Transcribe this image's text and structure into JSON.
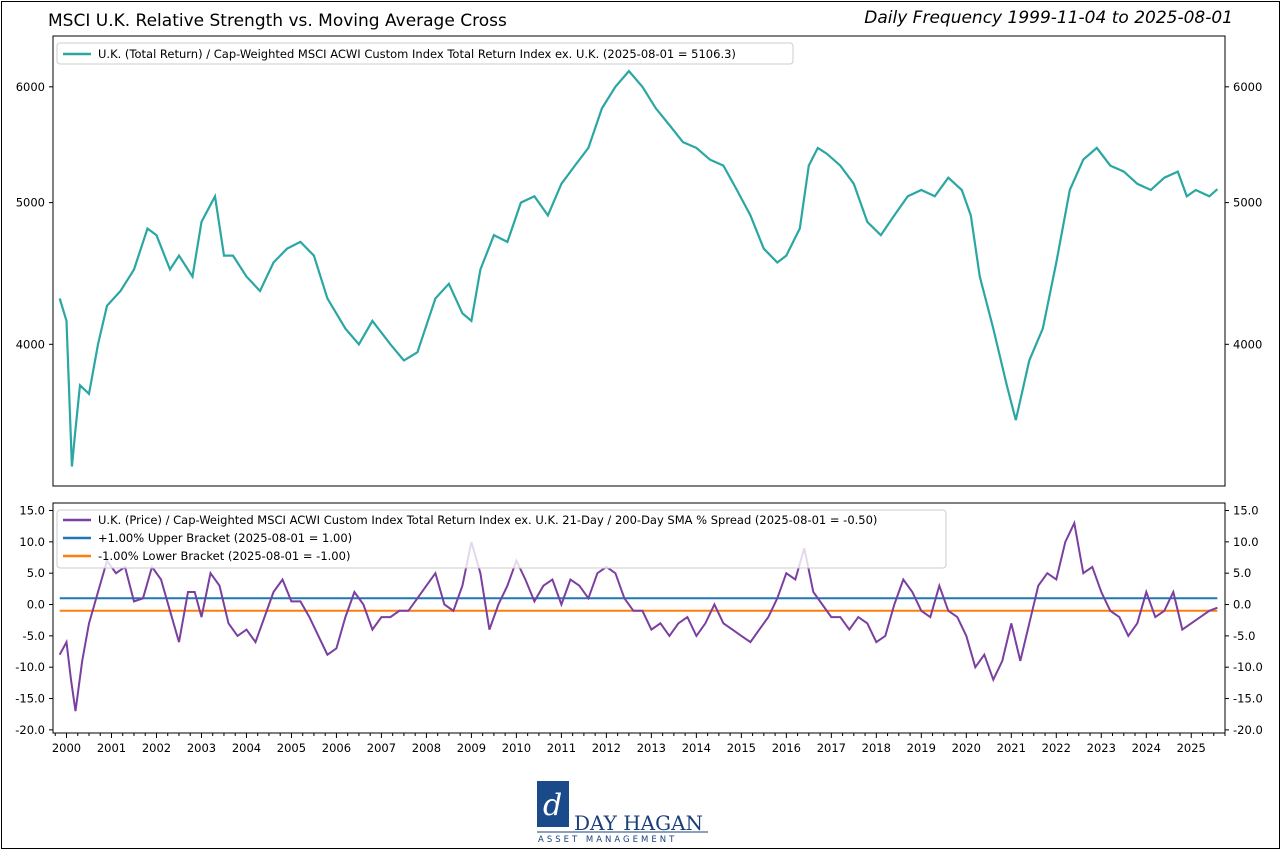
{
  "header": {
    "title": "MSCI U.K. Relative Strength vs. Moving Average Cross",
    "subtitle": "Daily Frequency 1999-11-04 to 2025-08-01"
  },
  "logo": {
    "name": "DAY HAGAN",
    "tagline": "ASSET MANAGEMENT"
  },
  "colors": {
    "teal": "#2aa7a3",
    "purple": "#7b3fa0",
    "blue": "#1f77b4",
    "orange": "#ff7f0e"
  },
  "chart_data": [
    {
      "type": "line",
      "panel": "top",
      "log_scale": true,
      "ylim": [
        3200,
        6500
      ],
      "yticks": [
        4000,
        5000,
        6000
      ],
      "ytick_labels": [
        "4000",
        "5000",
        "6000"
      ],
      "legend": "top-left",
      "series": [
        {
          "name": "U.K. (Total Return) / Cap-Weighted MSCI ACWI Custom Index Total Return Index ex. U.K. (2025-08-01 = 5106.3)",
          "color": "#2aa7a3",
          "x": [
            1999.85,
            2000.0,
            2000.12,
            2000.2,
            2000.3,
            2000.5,
            2000.7,
            2000.9,
            2001.2,
            2001.5,
            2001.8,
            2002.0,
            2002.3,
            2002.5,
            2002.8,
            2003.0,
            2003.3,
            2003.5,
            2003.7,
            2004.0,
            2004.3,
            2004.6,
            2004.9,
            2005.2,
            2005.5,
            2005.8,
            2006.2,
            2006.5,
            2006.8,
            2007.2,
            2007.5,
            2007.8,
            2008.2,
            2008.5,
            2008.8,
            2009.0,
            2009.2,
            2009.5,
            2009.8,
            2010.1,
            2010.4,
            2010.7,
            2011.0,
            2011.3,
            2011.6,
            2011.9,
            2012.2,
            2012.5,
            2012.8,
            2013.1,
            2013.4,
            2013.7,
            2014.0,
            2014.3,
            2014.6,
            2014.9,
            2015.2,
            2015.5,
            2015.8,
            2016.0,
            2016.3,
            2016.5,
            2016.7,
            2016.9,
            2017.2,
            2017.5,
            2017.8,
            2018.1,
            2018.4,
            2018.7,
            2019.0,
            2019.3,
            2019.6,
            2019.9,
            2020.1,
            2020.3,
            2020.6,
            2020.9,
            2021.1,
            2021.4,
            2021.7,
            2022.0,
            2022.3,
            2022.6,
            2022.9,
            2023.2,
            2023.5,
            2023.8,
            2024.1,
            2024.4,
            2024.7,
            2024.9,
            2025.1,
            2025.4,
            2025.58
          ],
          "y": [
            4300,
            4150,
            3300,
            3500,
            3750,
            3700,
            4000,
            4250,
            4350,
            4500,
            4800,
            4750,
            4500,
            4600,
            4450,
            4850,
            5050,
            4600,
            4600,
            4450,
            4350,
            4550,
            4650,
            4700,
            4600,
            4300,
            4100,
            4000,
            4150,
            4000,
            3900,
            3950,
            4300,
            4400,
            4200,
            4150,
            4500,
            4750,
            4700,
            5000,
            5050,
            4900,
            5150,
            5300,
            5450,
            5800,
            6000,
            6150,
            6000,
            5800,
            5650,
            5500,
            5450,
            5350,
            5300,
            5100,
            4900,
            4650,
            4550,
            4600,
            4800,
            5300,
            5450,
            5400,
            5300,
            5150,
            4850,
            4750,
            4900,
            5050,
            5100,
            5050,
            5200,
            5100,
            4900,
            4450,
            4100,
            3750,
            3550,
            3900,
            4100,
            4550,
            5100,
            5350,
            5450,
            5300,
            5250,
            5150,
            5100,
            5200,
            5250,
            5050,
            5100,
            5050,
            5106.3
          ]
        }
      ]
    },
    {
      "type": "line",
      "panel": "bottom",
      "ylim": [
        -20.5,
        16.2
      ],
      "yticks": [
        15,
        10,
        5,
        0,
        -5,
        -10,
        -15,
        -20
      ],
      "ytick_labels": [
        "15.0",
        "10.0",
        "5.0",
        "0.0",
        "-5.0",
        "-10.0",
        "-15.0",
        "-20.0"
      ],
      "xlim": [
        1999.7,
        2025.75
      ],
      "xticks": [
        2000,
        2001,
        2002,
        2003,
        2004,
        2005,
        2006,
        2007,
        2008,
        2009,
        2010,
        2011,
        2012,
        2013,
        2014,
        2015,
        2016,
        2017,
        2018,
        2019,
        2020,
        2021,
        2022,
        2023,
        2024,
        2025
      ],
      "xtick_labels": [
        "2000",
        "2001",
        "2002",
        "2003",
        "2004",
        "2005",
        "2006",
        "2007",
        "2008",
        "2009",
        "2010",
        "2011",
        "2012",
        "2013",
        "2014",
        "2015",
        "2016",
        "2017",
        "2018",
        "2019",
        "2020",
        "2021",
        "2022",
        "2023",
        "2024",
        "2025"
      ],
      "legend": "top-left",
      "series": [
        {
          "name": "U.K. (Price) / Cap-Weighted MSCI ACWI Custom Index Total Return Index ex. U.K. 21-Day / 200-Day SMA % Spread (2025-08-01 = -0.50)",
          "color": "#7b3fa0",
          "x": [
            1999.85,
            2000.0,
            2000.1,
            2000.2,
            2000.35,
            2000.5,
            2000.7,
            2000.9,
            2001.1,
            2001.3,
            2001.5,
            2001.7,
            2001.9,
            2002.1,
            2002.3,
            2002.5,
            2002.7,
            2002.85,
            2003.0,
            2003.2,
            2003.4,
            2003.6,
            2003.8,
            2004.0,
            2004.2,
            2004.4,
            2004.6,
            2004.8,
            2005.0,
            2005.2,
            2005.4,
            2005.6,
            2005.8,
            2006.0,
            2006.2,
            2006.4,
            2006.6,
            2006.8,
            2007.0,
            2007.2,
            2007.4,
            2007.6,
            2007.8,
            2008.0,
            2008.2,
            2008.4,
            2008.6,
            2008.8,
            2009.0,
            2009.2,
            2009.4,
            2009.6,
            2009.8,
            2010.0,
            2010.2,
            2010.4,
            2010.6,
            2010.8,
            2011.0,
            2011.2,
            2011.4,
            2011.6,
            2011.8,
            2012.0,
            2012.2,
            2012.4,
            2012.6,
            2012.8,
            2013.0,
            2013.2,
            2013.4,
            2013.6,
            2013.8,
            2014.0,
            2014.2,
            2014.4,
            2014.6,
            2014.8,
            2015.0,
            2015.2,
            2015.4,
            2015.6,
            2015.8,
            2016.0,
            2016.2,
            2016.4,
            2016.6,
            2016.8,
            2017.0,
            2017.2,
            2017.4,
            2017.6,
            2017.8,
            2018.0,
            2018.2,
            2018.4,
            2018.6,
            2018.8,
            2019.0,
            2019.2,
            2019.4,
            2019.6,
            2019.8,
            2020.0,
            2020.2,
            2020.4,
            2020.6,
            2020.8,
            2021.0,
            2021.2,
            2021.4,
            2021.6,
            2021.8,
            2022.0,
            2022.2,
            2022.4,
            2022.6,
            2022.8,
            2023.0,
            2023.2,
            2023.4,
            2023.6,
            2023.8,
            2024.0,
            2024.2,
            2024.4,
            2024.6,
            2024.8,
            2025.0,
            2025.2,
            2025.4,
            2025.58
          ],
          "y": [
            -8,
            -6,
            -12,
            -17,
            -9,
            -3,
            2,
            7,
            5,
            6,
            0.5,
            1,
            6,
            4,
            -1,
            -6,
            2,
            2,
            -2,
            5,
            3,
            -3,
            -5,
            -4,
            -6,
            -2,
            2,
            4,
            0.5,
            0.5,
            -2,
            -5,
            -8,
            -7,
            -2,
            2,
            0,
            -4,
            -2,
            -2,
            -1,
            -1,
            1,
            3,
            5,
            0,
            -1,
            3,
            10,
            5,
            -4,
            0,
            3,
            7,
            4,
            0.5,
            3,
            4,
            0,
            4,
            3,
            1,
            5,
            6,
            5,
            1,
            -1,
            -1,
            -4,
            -3,
            -5,
            -3,
            -2,
            -5,
            -3,
            0,
            -3,
            -4,
            -5,
            -6,
            -4,
            -2,
            1,
            5,
            4,
            9,
            2,
            0,
            -2,
            -2,
            -4,
            -2,
            -3,
            -6,
            -5,
            0,
            4,
            2,
            -1,
            -2,
            3,
            -1,
            -2,
            -5,
            -10,
            -8,
            -12,
            -9,
            -3,
            -9,
            -3,
            3,
            5,
            4,
            10,
            13,
            5,
            6,
            2,
            -1,
            -2,
            -5,
            -3,
            2,
            -2,
            -1,
            2,
            -4,
            -3,
            -2,
            -1,
            -0.5
          ]
        },
        {
          "name": "+1.00% Upper Bracket (2025-08-01 = 1.00)",
          "color": "#1f77b4",
          "value": 1.0
        },
        {
          "name": "-1.00% Lower Bracket (2025-08-01 = -1.00)",
          "color": "#ff7f0e",
          "value": -1.0
        }
      ]
    }
  ]
}
